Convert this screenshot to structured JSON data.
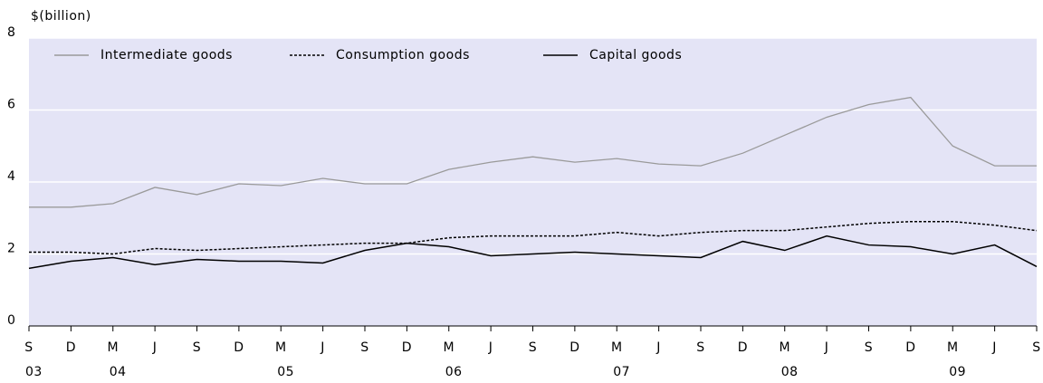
{
  "chart_data": {
    "type": "line",
    "y_label": "$(billion)",
    "categories": [
      "S",
      "D",
      "M",
      "J",
      "S",
      "D",
      "M",
      "J",
      "S",
      "D",
      "M",
      "J",
      "S",
      "D",
      "M",
      "J",
      "S",
      "D",
      "M",
      "J",
      "S",
      "D",
      "M",
      "J",
      "S"
    ],
    "category_years": [
      "03",
      null,
      "04",
      null,
      null,
      null,
      "05",
      null,
      null,
      null,
      "06",
      null,
      null,
      null,
      "07",
      null,
      null,
      null,
      "08",
      null,
      null,
      null,
      "09",
      null,
      null
    ],
    "series": [
      {
        "name": "Intermediate goods",
        "color": "#9a9a9a",
        "dash": "solid",
        "values": [
          3.3,
          3.3,
          3.4,
          3.85,
          3.65,
          3.95,
          3.9,
          4.1,
          3.95,
          3.95,
          4.35,
          4.55,
          4.7,
          4.55,
          4.65,
          4.5,
          4.45,
          4.8,
          5.3,
          5.8,
          6.15,
          6.35,
          5.0,
          4.45,
          4.45
        ]
      },
      {
        "name": "Consumption goods",
        "color": "#000000",
        "dash": "dotted",
        "values": [
          2.05,
          2.05,
          2.0,
          2.15,
          2.1,
          2.15,
          2.2,
          2.25,
          2.3,
          2.3,
          2.45,
          2.5,
          2.5,
          2.5,
          2.6,
          2.5,
          2.6,
          2.65,
          2.65,
          2.75,
          2.85,
          2.9,
          2.9,
          2.8,
          2.65
        ]
      },
      {
        "name": "Capital goods",
        "color": "#000000",
        "dash": "solid",
        "values": [
          1.6,
          1.8,
          1.9,
          1.7,
          1.85,
          1.8,
          1.8,
          1.75,
          2.1,
          2.3,
          2.2,
          1.95,
          2.0,
          2.05,
          2.0,
          1.95,
          1.9,
          2.35,
          2.1,
          2.5,
          2.25,
          2.2,
          2.0,
          2.25,
          1.65
        ]
      }
    ],
    "ylim": [
      0,
      8
    ],
    "yticks": [
      0,
      2,
      4,
      6,
      8
    ],
    "grid": true,
    "legend": "top-left"
  }
}
